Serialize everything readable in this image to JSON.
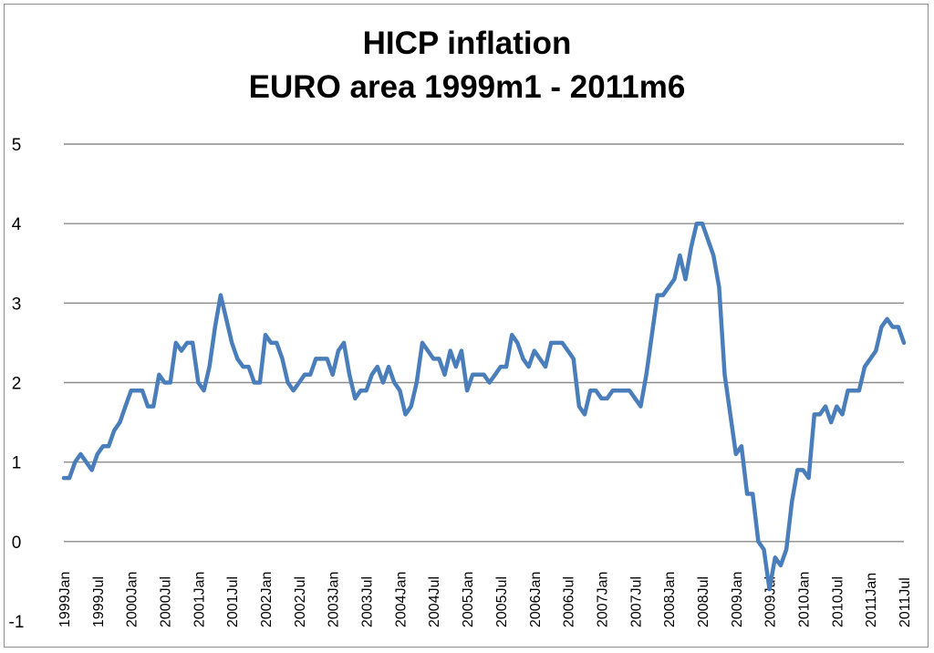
{
  "chart_data": {
    "type": "line",
    "title": "HICP inflation",
    "subtitle": "EURO area 1999m1 - 2011m6",
    "xlabel": "",
    "ylabel": "",
    "ylim": [
      -1,
      5
    ],
    "yticks": [
      -1,
      0,
      1,
      2,
      3,
      4,
      5
    ],
    "grid": true,
    "legend": "none",
    "line_color": "#4a7ebb",
    "x_tick_labels": [
      "1999Jan",
      "1999Jul",
      "2000Jan",
      "2000Jul",
      "2001Jan",
      "2001Jul",
      "2002Jan",
      "2002Jul",
      "2003Jan",
      "2003Jul",
      "2004Jan",
      "2004Jul",
      "2005Jan",
      "2005Jul",
      "2006Jan",
      "2006Jul",
      "2007Jan",
      "2007Jul",
      "2008Jan",
      "2008Jul",
      "2009Jan",
      "2009Jul",
      "2010Jan",
      "2010Jul",
      "2011Jan",
      "2011Jul"
    ],
    "series": [
      {
        "values": [
          0.8,
          0.8,
          1.0,
          1.1,
          1.0,
          0.9,
          1.1,
          1.2,
          1.2,
          1.4,
          1.5,
          1.7,
          1.9,
          1.9,
          1.9,
          1.7,
          1.7,
          2.1,
          2.0,
          2.0,
          2.5,
          2.4,
          2.5,
          2.5,
          2.0,
          1.9,
          2.2,
          2.7,
          3.1,
          2.8,
          2.5,
          2.3,
          2.2,
          2.2,
          2.0,
          2.0,
          2.6,
          2.5,
          2.5,
          2.3,
          2.0,
          1.9,
          2.0,
          2.1,
          2.1,
          2.3,
          2.3,
          2.3,
          2.1,
          2.4,
          2.5,
          2.1,
          1.8,
          1.9,
          1.9,
          2.1,
          2.2,
          2.0,
          2.2,
          2.0,
          1.9,
          1.6,
          1.7,
          2.0,
          2.5,
          2.4,
          2.3,
          2.3,
          2.1,
          2.4,
          2.2,
          2.4,
          1.9,
          2.1,
          2.1,
          2.1,
          2.0,
          2.1,
          2.2,
          2.2,
          2.6,
          2.5,
          2.3,
          2.2,
          2.4,
          2.3,
          2.2,
          2.5,
          2.5,
          2.5,
          2.4,
          2.3,
          1.7,
          1.6,
          1.9,
          1.9,
          1.8,
          1.8,
          1.9,
          1.9,
          1.9,
          1.9,
          1.8,
          1.7,
          2.1,
          2.6,
          3.1,
          3.1,
          3.2,
          3.3,
          3.6,
          3.3,
          3.7,
          4.0,
          4.0,
          3.8,
          3.6,
          3.2,
          2.1,
          1.6,
          1.1,
          1.2,
          0.6,
          0.6,
          0.0,
          -0.1,
          -0.6,
          -0.2,
          -0.3,
          -0.1,
          0.5,
          0.9,
          0.9,
          0.8,
          1.6,
          1.6,
          1.7,
          1.5,
          1.7,
          1.6,
          1.9,
          1.9,
          1.9,
          2.2,
          2.3,
          2.4,
          2.7,
          2.8,
          2.7,
          2.7,
          2.5
        ]
      }
    ]
  }
}
